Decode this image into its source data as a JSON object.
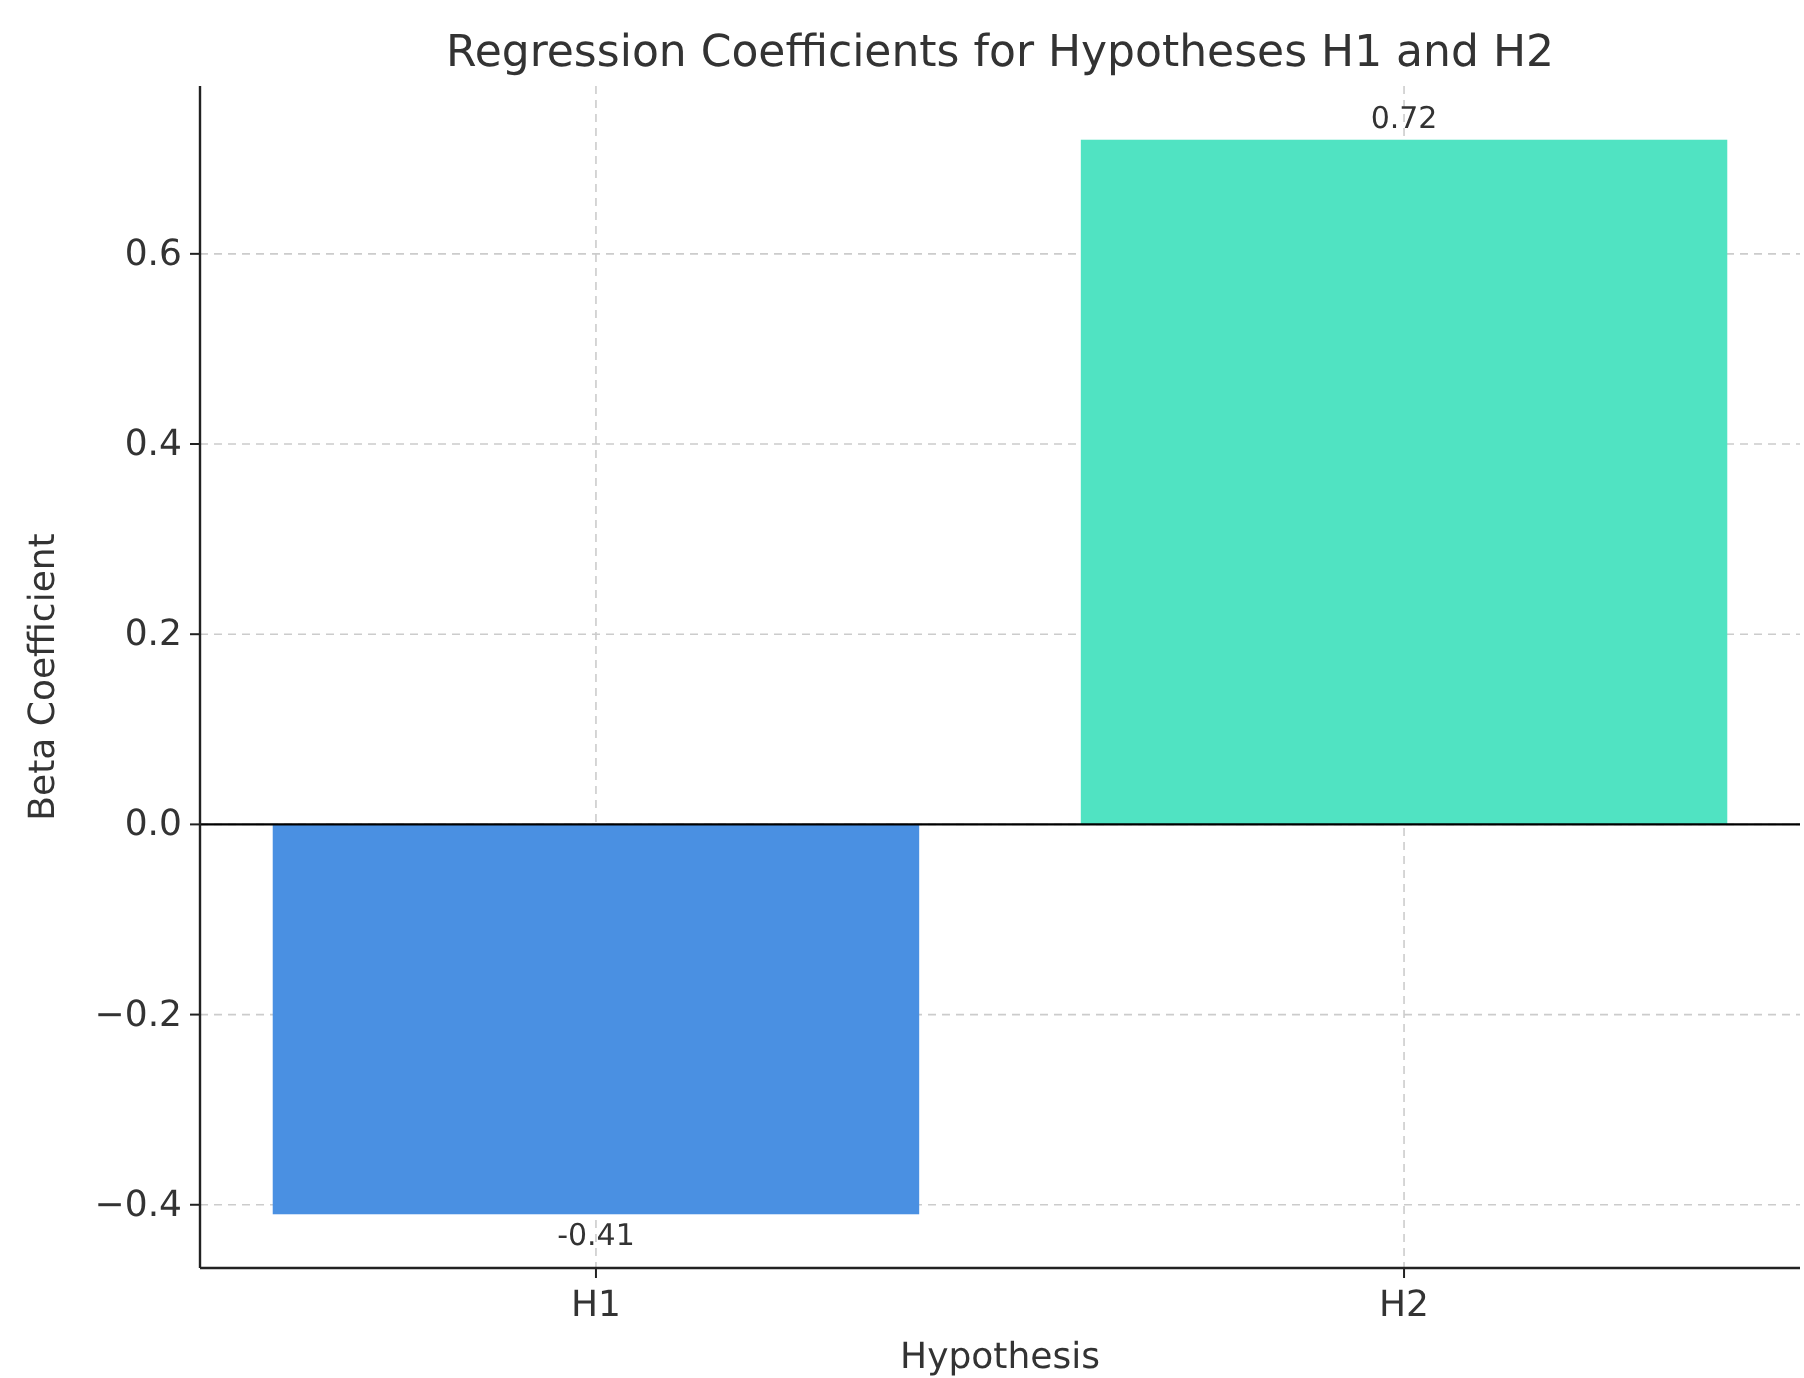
{
  "chart_data": {
    "type": "bar",
    "title": "Regression Coefficients for Hypotheses H1 and H2",
    "xlabel": "Hypothesis",
    "ylabel": "Beta Coefficient",
    "categories": [
      "H1",
      "H2"
    ],
    "values": [
      -0.41,
      0.72
    ],
    "colors": [
      "#4a90e2",
      "#50e3c2"
    ],
    "ylim": [
      -0.4665,
      0.7765
    ],
    "yticks": [
      {
        "value": -0.4,
        "label": "−0.4"
      },
      {
        "value": -0.2,
        "label": "−0.2"
      },
      {
        "value": 0,
        "label": "0.0"
      },
      {
        "value": 0.2,
        "label": "0.2"
      },
      {
        "value": 0.4,
        "label": "0.4"
      },
      {
        "value": 0.6,
        "label": "0.6"
      }
    ],
    "ref_lines": [
      {
        "axis": "y",
        "value": 0,
        "color": "#000000"
      }
    ],
    "data_labels": true,
    "grid": true
  }
}
